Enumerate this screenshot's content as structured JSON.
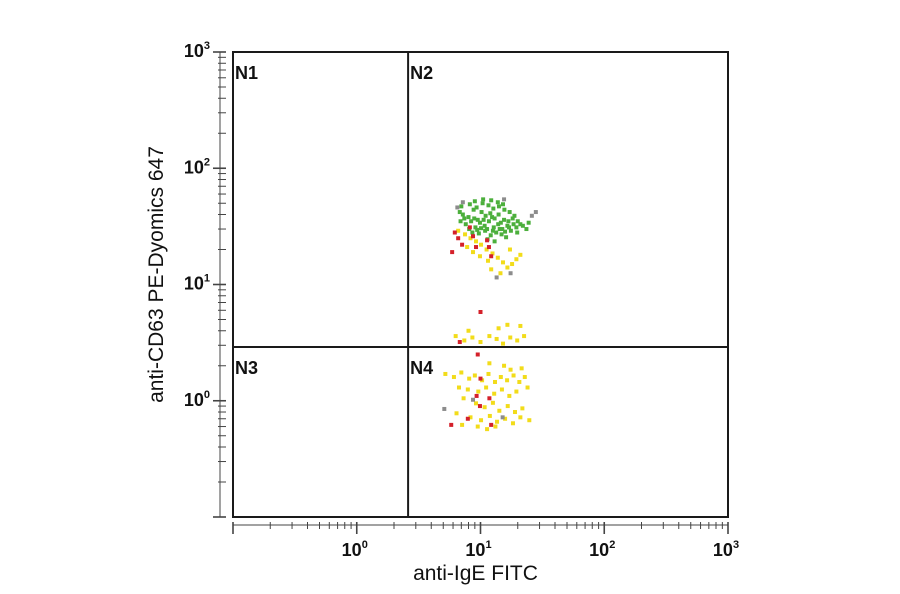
{
  "chart_data": {
    "type": "scatter",
    "title": "",
    "xlabel": "anti-IgE FITC",
    "ylabel": "anti-CD63 PE-Dyomics 647",
    "x_scale": "log",
    "y_scale": "log",
    "xlim": [
      0.1,
      1000
    ],
    "ylim": [
      0.1,
      1000
    ],
    "x_ticks": [
      {
        "base": "10",
        "exp": "0",
        "value": 1
      },
      {
        "base": "10",
        "exp": "1",
        "value": 10
      },
      {
        "base": "10",
        "exp": "2",
        "value": 100
      },
      {
        "base": "10",
        "exp": "3",
        "value": 1000
      }
    ],
    "y_ticks": [
      {
        "base": "10",
        "exp": "0",
        "value": 1
      },
      {
        "base": "10",
        "exp": "1",
        "value": 10
      },
      {
        "base": "10",
        "exp": "2",
        "value": 100
      },
      {
        "base": "10",
        "exp": "3",
        "value": 1000
      }
    ],
    "quadrant_gates": {
      "x": 2.6,
      "y": 2.9
    },
    "quadrant_labels": [
      "N1",
      "N2",
      "N3",
      "N4"
    ],
    "grid": false,
    "legend": "none",
    "series": [
      {
        "color": "#4caf3c",
        "points": [
          [
            7.2,
            40
          ],
          [
            8.0,
            38
          ],
          [
            8.8,
            44
          ],
          [
            9.5,
            36
          ],
          [
            10.2,
            42
          ],
          [
            11,
            39
          ],
          [
            12,
            41
          ],
          [
            13,
            37
          ],
          [
            14,
            40
          ],
          [
            15.5,
            36
          ],
          [
            7.6,
            33
          ],
          [
            8.4,
            35
          ],
          [
            9.1,
            31
          ],
          [
            9.9,
            34
          ],
          [
            10.8,
            32
          ],
          [
            11.7,
            35
          ],
          [
            12.8,
            31
          ],
          [
            13.9,
            33
          ],
          [
            15,
            30
          ],
          [
            16.5,
            32
          ],
          [
            7.0,
            47
          ],
          [
            8.2,
            49
          ],
          [
            9.3,
            46
          ],
          [
            10.4,
            50
          ],
          [
            11.6,
            48
          ],
          [
            12.7,
            45
          ],
          [
            14.1,
            47
          ],
          [
            15.6,
            44
          ],
          [
            17.2,
            42
          ],
          [
            18.8,
            39
          ],
          [
            8.6,
            28
          ],
          [
            9.7,
            27.5
          ],
          [
            10.9,
            29
          ],
          [
            12.1,
            26.5
          ],
          [
            13.4,
            28
          ],
          [
            14.8,
            27
          ],
          [
            16.1,
            25.5
          ],
          [
            17.6,
            29
          ],
          [
            19.5,
            31
          ],
          [
            21,
            33
          ],
          [
            7.4,
            37
          ],
          [
            8.9,
            37
          ],
          [
            10.6,
            36
          ],
          [
            12.4,
            38
          ],
          [
            14.6,
            34
          ],
          [
            16.8,
            35
          ],
          [
            18.2,
            37
          ],
          [
            20,
            35
          ],
          [
            22,
            32
          ],
          [
            23.5,
            30
          ],
          [
            9.0,
            52
          ],
          [
            10.5,
            54
          ],
          [
            12.2,
            53
          ],
          [
            13.8,
            51
          ],
          [
            15.2,
            49
          ],
          [
            6.8,
            42
          ],
          [
            6.9,
            35
          ],
          [
            24.5,
            34
          ],
          [
            11.4,
            24.5
          ],
          [
            13,
            23.5
          ],
          [
            8.1,
            30
          ],
          [
            9.4,
            29.5
          ],
          [
            10.1,
            30.5
          ],
          [
            11.3,
            30
          ],
          [
            12.6,
            29
          ],
          [
            14.3,
            30
          ],
          [
            15.8,
            28.5
          ],
          [
            17,
            31
          ],
          [
            18.5,
            33
          ],
          [
            19.8,
            28
          ]
        ]
      },
      {
        "color": "#f2dc1a",
        "points": [
          [
            6.6,
            29
          ],
          [
            7.5,
            27
          ],
          [
            8.3,
            25
          ],
          [
            9.2,
            23.5
          ],
          [
            10.1,
            22
          ],
          [
            11.2,
            20
          ],
          [
            12.5,
            18.5
          ],
          [
            13.8,
            17
          ],
          [
            15.2,
            15.5
          ],
          [
            16.5,
            14
          ],
          [
            7.8,
            21
          ],
          [
            8.7,
            19
          ],
          [
            9.9,
            17.5
          ],
          [
            11.5,
            16
          ],
          [
            18,
            15
          ],
          [
            19.5,
            16.5
          ],
          [
            21,
            18
          ],
          [
            12.2,
            13.5
          ],
          [
            14.5,
            12.5
          ],
          [
            17.3,
            20
          ],
          [
            6.3,
            3.6
          ],
          [
            7.4,
            3.3
          ],
          [
            8.6,
            3.5
          ],
          [
            10,
            3.2
          ],
          [
            11.8,
            3.6
          ],
          [
            13.5,
            3.4
          ],
          [
            15.2,
            3.1
          ],
          [
            17.4,
            3.5
          ],
          [
            19.8,
            3.3
          ],
          [
            22.5,
            3.6
          ],
          [
            14,
            4.2
          ],
          [
            16.5,
            4.5
          ],
          [
            21,
            4.4
          ],
          [
            8,
            4.0
          ],
          [
            5.2,
            1.7
          ],
          [
            6.1,
            1.6
          ],
          [
            7.0,
            1.75
          ],
          [
            8.1,
            1.55
          ],
          [
            9.0,
            1.65
          ],
          [
            10.3,
            1.5
          ],
          [
            11.6,
            1.7
          ],
          [
            13.1,
            1.45
          ],
          [
            14.6,
            1.6
          ],
          [
            16.4,
            1.5
          ],
          [
            18.5,
            1.65
          ],
          [
            20.6,
            1.45
          ],
          [
            22.8,
            1.6
          ],
          [
            6.7,
            1.3
          ],
          [
            7.9,
            1.25
          ],
          [
            9.6,
            1.2
          ],
          [
            11.1,
            1.3
          ],
          [
            12.9,
            1.15
          ],
          [
            14.9,
            1.25
          ],
          [
            17.1,
            1.1
          ],
          [
            19.5,
            1.2
          ],
          [
            24,
            1.3
          ],
          [
            7.3,
            1.05
          ],
          [
            9.2,
            0.95
          ],
          [
            10.8,
            0.88
          ],
          [
            12.6,
            0.96
          ],
          [
            14.2,
            0.82
          ],
          [
            16.6,
            0.9
          ],
          [
            19,
            0.8
          ],
          [
            21.8,
            0.86
          ],
          [
            6.4,
            0.78
          ],
          [
            8.3,
            0.72
          ],
          [
            10.1,
            0.68
          ],
          [
            11.9,
            0.74
          ],
          [
            13.6,
            0.66
          ],
          [
            15.8,
            0.7
          ],
          [
            18.3,
            0.64
          ],
          [
            21,
            0.72
          ],
          [
            24.8,
            0.68
          ],
          [
            9.5,
            0.6
          ],
          [
            11.3,
            0.57
          ],
          [
            13.2,
            0.6
          ],
          [
            7.1,
            0.62
          ],
          [
            17.5,
            1.85
          ],
          [
            21.5,
            1.9
          ],
          [
            15.5,
            2.0
          ],
          [
            11.8,
            2.1
          ]
        ]
      },
      {
        "color": "#d4202a",
        "points": [
          [
            6.2,
            28
          ],
          [
            6.6,
            25
          ],
          [
            7.1,
            22
          ],
          [
            5.9,
            19
          ],
          [
            8.2,
            31
          ],
          [
            8.7,
            26
          ],
          [
            11.3,
            24
          ],
          [
            9.2,
            21
          ],
          [
            11.7,
            21
          ],
          [
            12.2,
            17.5
          ],
          [
            10,
            5.8
          ],
          [
            6.8,
            3.2
          ],
          [
            9.5,
            2.5
          ],
          [
            5.8,
            0.62
          ],
          [
            10,
            1.55
          ],
          [
            9.3,
            1.1
          ],
          [
            11.8,
            1.05
          ],
          [
            7.9,
            0.7
          ],
          [
            9.9,
            0.9
          ],
          [
            12.2,
            0.62
          ]
        ]
      },
      {
        "color": "#8c8c8c",
        "points": [
          [
            6.5,
            46
          ],
          [
            7.2,
            51
          ],
          [
            15.5,
            54
          ],
          [
            26,
            39
          ],
          [
            28,
            42
          ],
          [
            17.5,
            12.5
          ],
          [
            13.5,
            11.5
          ],
          [
            5.1,
            0.85
          ],
          [
            15.1,
            0.72
          ],
          [
            8.7,
            1.02
          ]
        ]
      }
    ]
  }
}
